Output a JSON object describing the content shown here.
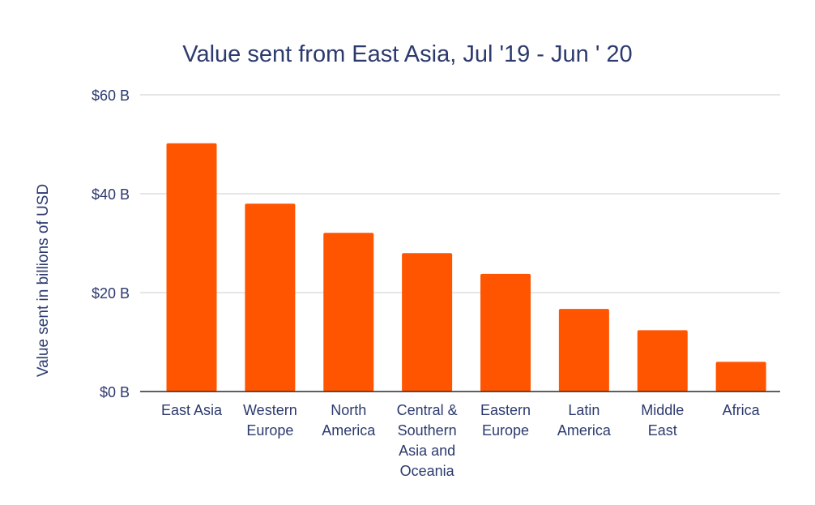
{
  "chart_data": {
    "type": "bar",
    "title": "Value sent from East Asia, Jul '19 - Jun ' 20",
    "xlabel": "",
    "ylabel": "Value sent in billions of USD",
    "ylim": [
      0,
      60
    ],
    "yticks": [
      0,
      20,
      40,
      60
    ],
    "ytick_labels": [
      "$0 B",
      "$20 B",
      "$40 B",
      "$60 B"
    ],
    "grid": true,
    "categories": [
      [
        "East Asia"
      ],
      [
        "Western",
        "Europe"
      ],
      [
        "North",
        "America"
      ],
      [
        "Central &",
        "Southern",
        "Asia and",
        "Oceania"
      ],
      [
        "Eastern",
        "Europe"
      ],
      [
        "Latin",
        "America"
      ],
      [
        "Middle",
        "East"
      ],
      [
        "Africa"
      ]
    ],
    "values": [
      50.2,
      38.0,
      32.1,
      28.0,
      23.8,
      16.7,
      12.4,
      6.0
    ]
  },
  "colors": {
    "bar": "#ff5500",
    "text": "#2c3a6e",
    "grid": "#cccccc",
    "axis": "#2a2a2a"
  }
}
